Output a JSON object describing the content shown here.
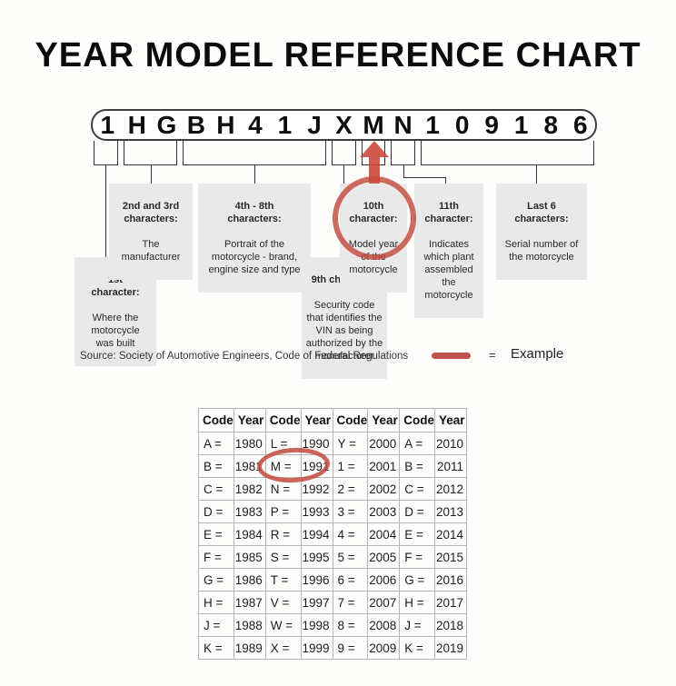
{
  "colors": {
    "accent_red": "#c24a3d",
    "label_background": "#e9e9e9",
    "table_border": "#b5b5b5",
    "diagram_line": "#333333"
  },
  "title": "YEAR MODEL REFERENCE CHART",
  "vin": {
    "characters": [
      "1",
      "H",
      "G",
      "B",
      "H",
      "4",
      "1",
      "J",
      "X",
      "M",
      "N",
      "1",
      "0",
      "9",
      "1",
      "8",
      "6"
    ],
    "highlighted_character": "M"
  },
  "callouts": {
    "first": {
      "heading": "1st\ncharacter:",
      "body": "Where the\nmotorcycle\nwas built"
    },
    "second_third": {
      "heading": "2nd and 3rd\ncharacters:",
      "body": "The\nmanufacturer"
    },
    "fourth_eighth": {
      "heading": "4th - 8th\ncharacters:",
      "body": "Portrait of the\nmotorcycle - brand,\nengine size and type"
    },
    "ninth": {
      "heading": "9th character:",
      "body": "Security code\nthat identifies the\nVIN as being\nauthorized by the\nmanufacturer"
    },
    "tenth": {
      "heading": "10th\ncharacter:",
      "body": "Model year\nof the\nmotorcycle"
    },
    "eleventh": {
      "heading": "11th\ncharacter:",
      "body": "Indicates\nwhich plant\nassembled\nthe\nmotorcycle"
    },
    "last_six": {
      "heading": "Last 6\ncharacters:",
      "body": "Serial number of\nthe motorcycle"
    }
  },
  "legend": {
    "source": "Source:  Society of Automotive Engineers, Code of Federal Regulations",
    "equals": "=",
    "example": "Example"
  },
  "table": {
    "headers": [
      "Code",
      "Year",
      "Code",
      "Year",
      "Code",
      "Year",
      "Code",
      "Year"
    ],
    "rows": [
      [
        "A =",
        "1980",
        "L =",
        "1990",
        "Y =",
        "2000",
        "A =",
        "2010"
      ],
      [
        "B =",
        "1981",
        "M =",
        "1991",
        "1 =",
        "2001",
        "B =",
        "2011"
      ],
      [
        "C =",
        "1982",
        "N =",
        "1992",
        "2 =",
        "2002",
        "C =",
        "2012"
      ],
      [
        "D =",
        "1983",
        "P =",
        "1993",
        "3 =",
        "2003",
        "D =",
        "2013"
      ],
      [
        "E =",
        "1984",
        "R =",
        "1994",
        "4 =",
        "2004",
        "E =",
        "2014"
      ],
      [
        "F =",
        "1985",
        "S =",
        "1995",
        "5 =",
        "2005",
        "F =",
        "2015"
      ],
      [
        "G =",
        "1986",
        "T =",
        "1996",
        "6 =",
        "2006",
        "G =",
        "2016"
      ],
      [
        "H =",
        "1987",
        "V =",
        "1997",
        "7 =",
        "2007",
        "H =",
        "2017"
      ],
      [
        "J =",
        "1988",
        "W =",
        "1998",
        "8 =",
        "2008",
        "J =",
        "2018"
      ],
      [
        "K =",
        "1989",
        "X =",
        "1999",
        "9 =",
        "2009",
        "K =",
        "2019"
      ]
    ],
    "highlighted_pair": "M = 1991"
  }
}
